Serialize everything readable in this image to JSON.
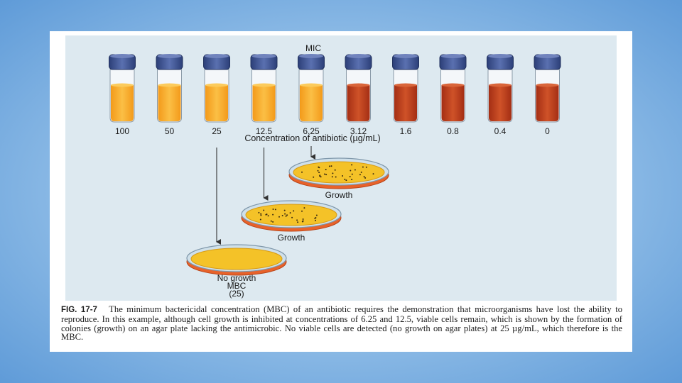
{
  "figure": {
    "mic_label": "MIC",
    "axis_label": "Concentration of antibiotic (µg/mL)",
    "tubes": [
      {
        "concentration": "100",
        "growth": false
      },
      {
        "concentration": "50",
        "growth": false
      },
      {
        "concentration": "25",
        "growth": false
      },
      {
        "concentration": "12.5",
        "growth": false
      },
      {
        "concentration": "6.25",
        "growth": false
      },
      {
        "concentration": "3.12",
        "growth": true
      },
      {
        "concentration": "1.6",
        "growth": true
      },
      {
        "concentration": "0.8",
        "growth": true
      },
      {
        "concentration": "0.4",
        "growth": true
      },
      {
        "concentration": "0",
        "growth": true
      }
    ],
    "plates": [
      {
        "from_tube": "6.25",
        "label_lines": [
          "Growth"
        ],
        "colonies": true
      },
      {
        "from_tube": "12.5",
        "label_lines": [
          "Growth"
        ],
        "colonies": true
      },
      {
        "from_tube": "25",
        "label_lines": [
          "No growth",
          "MBC",
          "(25)"
        ],
        "colonies": false
      }
    ]
  },
  "caption": {
    "label": "FIG. 17-7",
    "text": "The minimum bactericidal concentration (MBC) of an antibiotic requires the demonstration that microorganisms have lost the ability to reproduce. In this example, although cell growth is inhibited at concentrations of 6.25 and 12.5, viable cells remain, which is shown by the formation of colonies (growth) on an agar plate lacking the antimicrobic. No viable cells are detected (no growth on agar plates) at 25 µg/mL, which therefore is the MBC."
  },
  "colors": {
    "no_growth_medium": "#f6a623",
    "growth_medium": "#b8391c",
    "cap": "#39508e",
    "agar": "#f4c228",
    "plate_rim": "#e8622a",
    "panel_bg": "#dde9f0"
  }
}
